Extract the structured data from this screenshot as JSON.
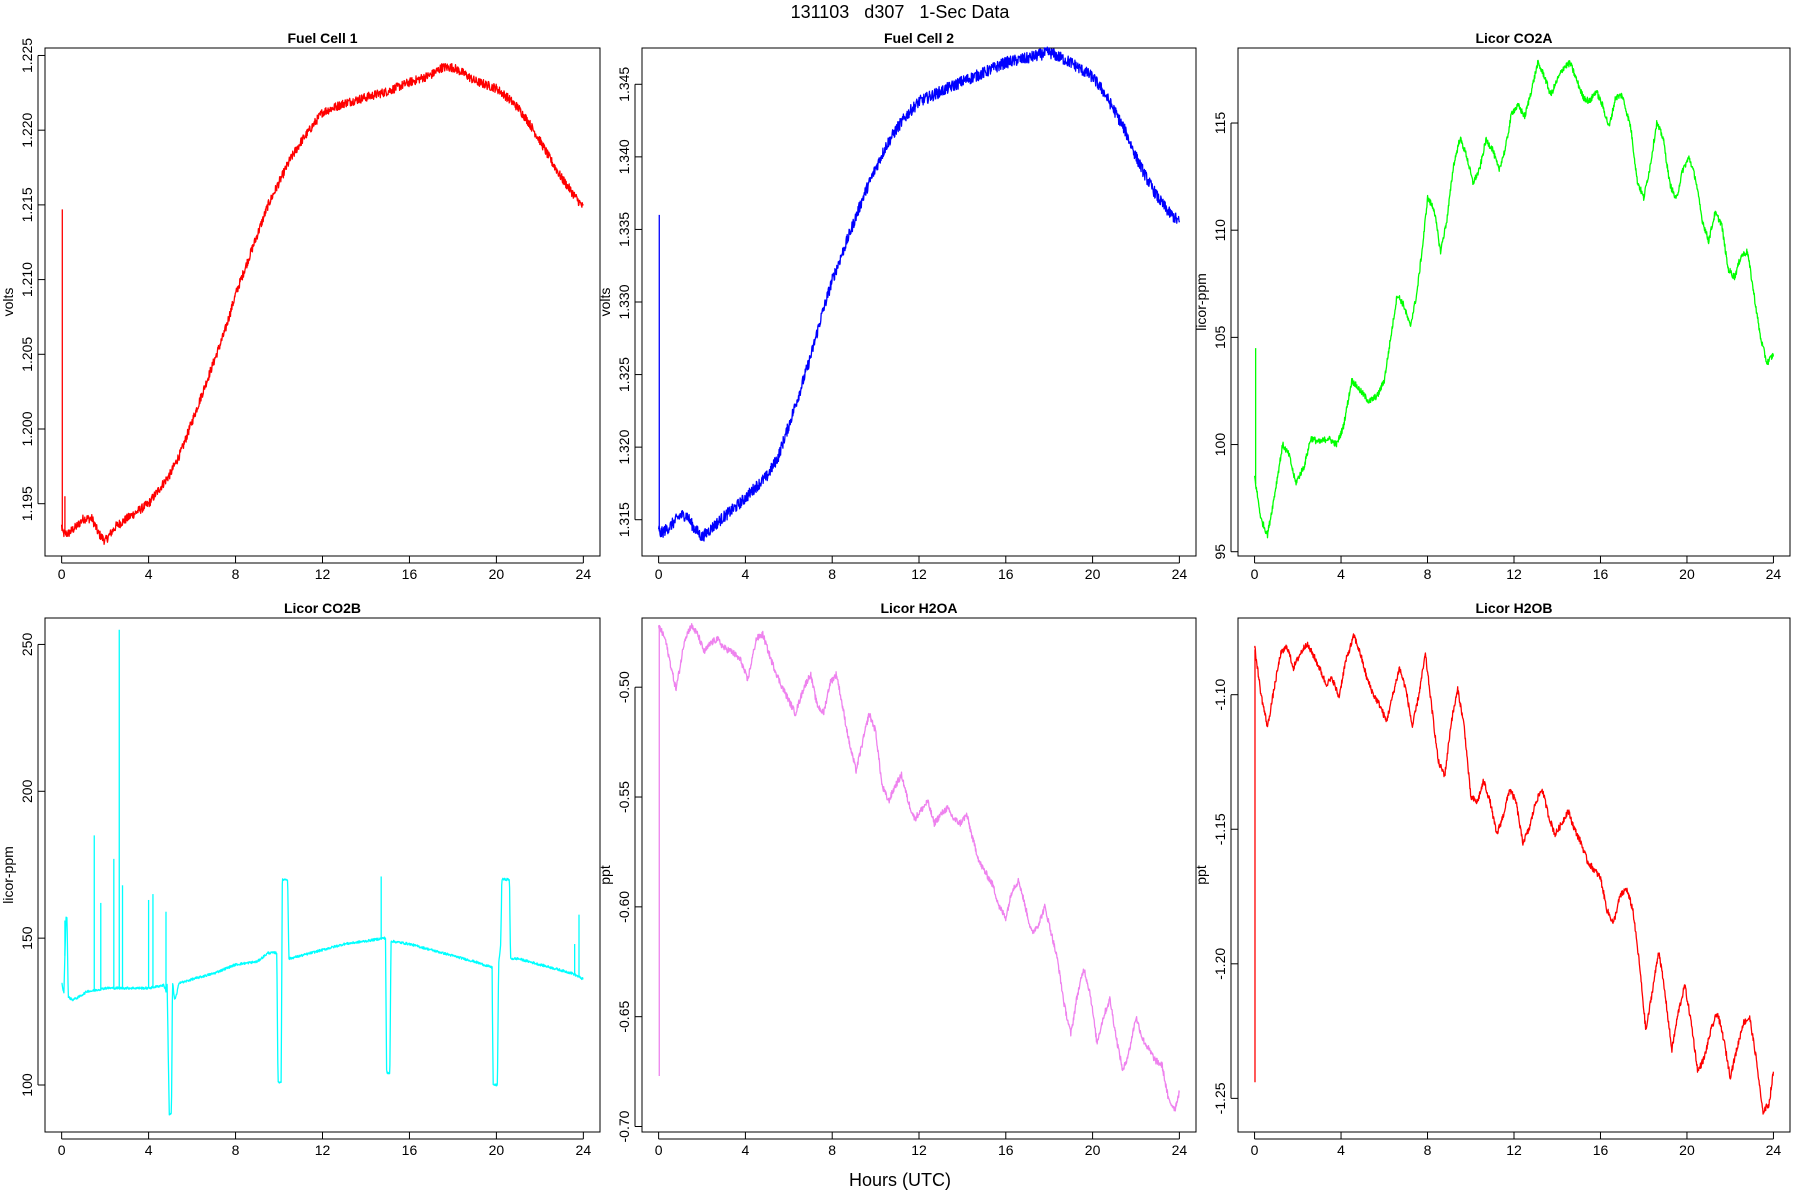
{
  "page": {
    "title": "131103   d307   1-Sec Data",
    "xlabel": "Hours (UTC)"
  },
  "chart_data": [
    {
      "type": "line",
      "title": "Fuel Cell 1",
      "ylabel": "volts",
      "color": "#ff0000",
      "xlim": [
        0,
        24
      ],
      "ylim": [
        1.1915,
        1.2255
      ],
      "x_ticks": [
        0,
        4,
        8,
        12,
        16,
        20,
        24
      ],
      "y_ticks": [
        1.195,
        1.2,
        1.205,
        1.21,
        1.215,
        1.22,
        1.225
      ],
      "y_tick_labels": [
        "1.195",
        "1.200",
        "1.205",
        "1.210",
        "1.215",
        "1.220",
        "1.225"
      ],
      "noise": 0.0003,
      "spikes": [
        [
          0.03,
          1.2147
        ],
        [
          0.15,
          1.1955
        ]
      ],
      "series": [
        {
          "x": [
            0,
            0.05,
            0.3,
            0.7,
            1.0,
            1.4,
            1.7,
            2.0,
            2.5,
            3.0,
            3.5,
            4.0,
            4.5,
            5.0,
            5.5,
            6.0,
            6.5,
            7.0,
            7.5,
            8.0,
            8.5,
            9.0,
            9.5,
            10.0,
            10.5,
            11.0,
            11.5,
            12.0,
            13.0,
            14.0,
            15.0,
            16.0,
            17.0,
            17.5,
            18.0,
            18.5,
            19.0,
            20.0,
            20.5,
            21.0,
            21.5,
            22.0,
            22.5,
            23.0,
            23.5,
            24.0
          ],
          "y": [
            1.1935,
            1.193,
            1.193,
            1.1935,
            1.194,
            1.194,
            1.193,
            1.1925,
            1.1935,
            1.194,
            1.1945,
            1.195,
            1.196,
            1.197,
            1.1985,
            1.2005,
            1.2025,
            1.2045,
            1.2065,
            1.209,
            1.211,
            1.213,
            1.215,
            1.2165,
            1.218,
            1.2192,
            1.2202,
            1.2212,
            1.2218,
            1.2222,
            1.2226,
            1.2232,
            1.2237,
            1.2242,
            1.2242,
            1.2238,
            1.2233,
            1.2228,
            1.2222,
            1.2215,
            1.2205,
            1.2193,
            1.218,
            1.2168,
            1.2158,
            1.2148
          ]
        }
      ]
    },
    {
      "type": "line",
      "title": "Fuel Cell 2",
      "ylabel": "volts",
      "color": "#0000ff",
      "xlim": [
        0,
        24
      ],
      "ylim": [
        1.3125,
        1.3475
      ],
      "x_ticks": [
        0,
        4,
        8,
        12,
        16,
        20,
        24
      ],
      "y_ticks": [
        1.315,
        1.32,
        1.325,
        1.33,
        1.335,
        1.34,
        1.345
      ],
      "y_tick_labels": [
        "1.315",
        "1.320",
        "1.325",
        "1.330",
        "1.335",
        "1.340",
        "1.345"
      ],
      "noise": 0.0004,
      "spikes": [
        [
          0.03,
          1.336
        ]
      ],
      "series": [
        {
          "x": [
            0,
            0.05,
            0.5,
            1.0,
            1.3,
            1.6,
            2.0,
            2.5,
            3.0,
            3.5,
            4.0,
            4.5,
            5.0,
            5.5,
            6.0,
            6.5,
            7.0,
            7.5,
            8.0,
            8.5,
            9.0,
            9.5,
            10.0,
            10.5,
            11.0,
            11.5,
            12.0,
            13.0,
            14.0,
            15.0,
            16.0,
            17.0,
            18.0,
            19.0,
            20.0,
            20.5,
            21.0,
            21.5,
            22.0,
            22.5,
            23.0,
            23.5,
            24.0
          ],
          "y": [
            1.3145,
            1.314,
            1.3145,
            1.3153,
            1.3153,
            1.3145,
            1.3138,
            1.3145,
            1.3152,
            1.3158,
            1.3165,
            1.3173,
            1.318,
            1.3193,
            1.3215,
            1.3238,
            1.3262,
            1.329,
            1.3315,
            1.3335,
            1.3355,
            1.3375,
            1.3392,
            1.3408,
            1.342,
            1.343,
            1.3438,
            1.3445,
            1.3452,
            1.3458,
            1.3465,
            1.3468,
            1.3472,
            1.3465,
            1.3455,
            1.3445,
            1.3432,
            1.3418,
            1.34,
            1.3385,
            1.3372,
            1.3362,
            1.3355
          ]
        }
      ]
    },
    {
      "type": "line",
      "title": "Licor CO2A",
      "ylabel": "licor-ppm",
      "color": "#00ff00",
      "xlim": [
        0,
        24
      ],
      "ylim": [
        94.8,
        118.5
      ],
      "x_ticks": [
        0,
        4,
        8,
        12,
        16,
        20,
        24
      ],
      "y_ticks": [
        95,
        100,
        105,
        110,
        115
      ],
      "y_tick_labels": [
        "95",
        "100",
        "105",
        "110",
        "115"
      ],
      "noise": 0.15,
      "spikes": [
        [
          0.05,
          104.5
        ]
      ],
      "series": [
        {
          "x": [
            0,
            0.3,
            0.6,
            0.9,
            1.3,
            1.6,
            1.9,
            2.3,
            2.6,
            3.0,
            3.4,
            3.8,
            4.1,
            4.5,
            4.9,
            5.3,
            5.7,
            6.0,
            6.3,
            6.6,
            6.9,
            7.2,
            7.5,
            7.8,
            8.0,
            8.3,
            8.6,
            8.9,
            9.2,
            9.5,
            9.8,
            10.1,
            10.4,
            10.7,
            11.0,
            11.3,
            11.6,
            11.9,
            12.2,
            12.5,
            12.8,
            13.1,
            13.4,
            13.7,
            14.0,
            14.3,
            14.6,
            14.9,
            15.2,
            15.5,
            15.8,
            16.1,
            16.4,
            16.7,
            17.0,
            17.4,
            17.7,
            18.0,
            18.3,
            18.6,
            18.9,
            19.2,
            19.5,
            19.8,
            20.1,
            20.4,
            20.7,
            21.0,
            21.3,
            21.6,
            21.9,
            22.2,
            22.5,
            22.8,
            23.1,
            23.4,
            23.7,
            24.0
          ],
          "y": [
            98.5,
            96.5,
            95.8,
            97.5,
            100.0,
            99.5,
            98.2,
            99.0,
            100.3,
            100.1,
            100.3,
            100.0,
            100.8,
            103.0,
            102.5,
            102.0,
            102.3,
            103.0,
            105.0,
            107.0,
            106.5,
            105.5,
            107.0,
            109.5,
            111.5,
            111.0,
            109.0,
            110.5,
            113.0,
            114.3,
            113.5,
            112.2,
            112.8,
            114.2,
            113.8,
            112.8,
            113.8,
            115.5,
            115.8,
            115.3,
            116.5,
            117.8,
            117.2,
            116.3,
            117.0,
            117.6,
            117.8,
            117.0,
            116.2,
            116.0,
            116.5,
            115.8,
            114.8,
            116.2,
            116.3,
            114.8,
            112.3,
            111.5,
            113.0,
            115.0,
            114.3,
            112.2,
            111.4,
            112.8,
            113.4,
            112.4,
            110.5,
            109.5,
            110.8,
            110.3,
            108.2,
            107.8,
            108.8,
            109.0,
            107.0,
            105.0,
            103.8,
            104.2
          ]
        }
      ]
    },
    {
      "type": "line",
      "title": "Licor CO2B",
      "ylabel": "licor-ppm",
      "color": "#00ffff",
      "xlim": [
        0,
        24
      ],
      "ylim": [
        84,
        259
      ],
      "x_ticks": [
        0,
        4,
        8,
        12,
        16,
        20,
        24
      ],
      "y_ticks": [
        100,
        150,
        200,
        250
      ],
      "y_tick_labels": [
        "100",
        "150",
        "200",
        "250"
      ],
      "noise": 0.4,
      "spikes": [
        [
          0.15,
          156
        ],
        [
          1.5,
          185
        ],
        [
          1.8,
          162
        ],
        [
          2.4,
          177
        ],
        [
          2.65,
          255
        ],
        [
          2.8,
          168
        ],
        [
          4.0,
          163
        ],
        [
          4.2,
          165
        ],
        [
          4.8,
          159
        ],
        [
          14.7,
          171
        ],
        [
          23.6,
          148
        ],
        [
          23.8,
          158
        ]
      ],
      "series": [
        {
          "x": [
            0,
            0.05,
            0.1,
            0.2,
            0.25,
            0.3,
            0.5,
            0.8,
            1.0,
            1.2,
            1.4,
            2.0,
            3.0,
            4.0,
            4.7,
            4.8,
            4.85,
            4.95,
            5.05,
            5.1,
            5.2,
            5.3,
            5.4,
            5.6,
            6.0,
            7.0,
            8.0,
            9.0,
            9.5,
            9.9,
            9.95,
            10.1,
            10.15,
            10.4,
            10.45,
            11.0,
            12.0,
            13.0,
            14.0,
            14.8,
            14.9,
            14.95,
            15.1,
            15.15,
            16.0,
            17.0,
            18.0,
            19.0,
            19.8,
            19.85,
            20.05,
            20.1,
            20.2,
            20.25,
            20.3,
            20.35,
            20.6,
            20.65,
            21.0,
            21.5,
            22.0,
            22.5,
            23.0,
            23.5,
            24.0
          ],
          "y": [
            135,
            133,
            131,
            157,
            157,
            130,
            129,
            130,
            131,
            132,
            132,
            133,
            133,
            133,
            134,
            132,
            135,
            90,
            90,
            135,
            129,
            131,
            135,
            135,
            136,
            138,
            141,
            142,
            145,
            145,
            101,
            101,
            170,
            170,
            143,
            144,
            146,
            148,
            149,
            150,
            150,
            104,
            104,
            149,
            148,
            146,
            144,
            142,
            140,
            100,
            100,
            141,
            148,
            170,
            170,
            170,
            170,
            143,
            143,
            142,
            141,
            140,
            139,
            138,
            136
          ]
        }
      ]
    },
    {
      "type": "line",
      "title": "Licor H2OA",
      "ylabel": "ppt",
      "color": "#ee82ee",
      "xlim": [
        0,
        24
      ],
      "ylim": [
        -0.7025,
        -0.4685
      ],
      "x_ticks": [
        0,
        4,
        8,
        12,
        16,
        20,
        24
      ],
      "y_ticks": [
        -0.7,
        -0.65,
        -0.6,
        -0.55,
        -0.5
      ],
      "y_tick_labels": [
        "-0.70",
        "-0.65",
        "-0.60",
        "-0.55",
        "-0.50"
      ],
      "noise": 0.0015,
      "spikes": [
        [
          0.03,
          -0.677
        ]
      ],
      "series": [
        {
          "x": [
            0,
            0.3,
            0.6,
            0.8,
            1.0,
            1.2,
            1.5,
            1.8,
            2.1,
            2.4,
            2.7,
            3.0,
            3.4,
            3.8,
            4.1,
            4.5,
            4.8,
            5.2,
            5.6,
            6.0,
            6.3,
            6.7,
            7.0,
            7.3,
            7.6,
            7.9,
            8.2,
            8.5,
            8.8,
            9.1,
            9.4,
            9.7,
            10.0,
            10.3,
            10.6,
            10.9,
            11.2,
            11.5,
            11.8,
            12.1,
            12.4,
            12.7,
            13.0,
            13.3,
            13.6,
            13.9,
            14.2,
            14.5,
            14.8,
            15.1,
            15.4,
            15.7,
            16.0,
            16.3,
            16.6,
            16.9,
            17.2,
            17.5,
            17.8,
            18.1,
            18.4,
            18.7,
            19.0,
            19.3,
            19.6,
            19.9,
            20.2,
            20.5,
            20.8,
            21.1,
            21.4,
            21.7,
            22.0,
            22.3,
            22.6,
            22.9,
            23.2,
            23.5,
            23.8,
            24.0
          ],
          "y": [
            -0.472,
            -0.478,
            -0.492,
            -0.501,
            -0.49,
            -0.478,
            -0.472,
            -0.476,
            -0.484,
            -0.48,
            -0.478,
            -0.482,
            -0.484,
            -0.488,
            -0.497,
            -0.478,
            -0.476,
            -0.488,
            -0.498,
            -0.506,
            -0.512,
            -0.5,
            -0.494,
            -0.508,
            -0.512,
            -0.498,
            -0.494,
            -0.51,
            -0.526,
            -0.538,
            -0.525,
            -0.512,
            -0.52,
            -0.545,
            -0.552,
            -0.545,
            -0.54,
            -0.552,
            -0.56,
            -0.556,
            -0.552,
            -0.562,
            -0.558,
            -0.555,
            -0.56,
            -0.562,
            -0.558,
            -0.57,
            -0.58,
            -0.585,
            -0.59,
            -0.6,
            -0.605,
            -0.592,
            -0.588,
            -0.6,
            -0.612,
            -0.608,
            -0.6,
            -0.612,
            -0.625,
            -0.645,
            -0.658,
            -0.64,
            -0.628,
            -0.64,
            -0.662,
            -0.65,
            -0.642,
            -0.66,
            -0.675,
            -0.665,
            -0.65,
            -0.66,
            -0.665,
            -0.67,
            -0.672,
            -0.688,
            -0.692,
            -0.684
          ]
        }
      ]
    },
    {
      "type": "line",
      "title": "Licor H2OB",
      "ylabel": "ppt",
      "color": "#ff0000",
      "xlim": [
        0,
        24
      ],
      "ylim": [
        -1.2625,
        -1.0715
      ],
      "x_ticks": [
        0,
        4,
        8,
        12,
        16,
        20,
        24
      ],
      "y_ticks": [
        -1.25,
        -1.2,
        -1.15,
        -1.1
      ],
      "y_tick_labels": [
        "-1.25",
        "-1.20",
        "-1.15",
        "-1.10"
      ],
      "noise": 0.0012,
      "spikes": [
        [
          0.02,
          -1.244
        ]
      ],
      "series": [
        {
          "x": [
            0,
            0.3,
            0.6,
            0.9,
            1.2,
            1.5,
            1.8,
            2.1,
            2.4,
            2.7,
            3.0,
            3.3,
            3.6,
            3.9,
            4.2,
            4.6,
            4.9,
            5.2,
            5.5,
            5.8,
            6.1,
            6.4,
            6.7,
            7.0,
            7.3,
            7.6,
            7.9,
            8.2,
            8.5,
            8.8,
            9.1,
            9.4,
            9.7,
            10.0,
            10.3,
            10.6,
            10.9,
            11.2,
            11.5,
            11.8,
            12.1,
            12.4,
            12.7,
            13.0,
            13.3,
            13.6,
            13.9,
            14.2,
            14.5,
            14.8,
            15.1,
            15.4,
            15.7,
            16.0,
            16.3,
            16.6,
            16.9,
            17.2,
            17.5,
            17.8,
            18.1,
            18.4,
            18.7,
            19.0,
            19.3,
            19.6,
            19.9,
            20.2,
            20.5,
            20.8,
            21.1,
            21.4,
            21.7,
            22.0,
            22.3,
            22.6,
            22.9,
            23.2,
            23.5,
            23.8,
            24.0
          ],
          "y": [
            -1.082,
            -1.1,
            -1.112,
            -1.098,
            -1.085,
            -1.082,
            -1.09,
            -1.085,
            -1.081,
            -1.085,
            -1.09,
            -1.096,
            -1.094,
            -1.101,
            -1.088,
            -1.078,
            -1.085,
            -1.094,
            -1.1,
            -1.104,
            -1.11,
            -1.1,
            -1.09,
            -1.098,
            -1.112,
            -1.1,
            -1.085,
            -1.105,
            -1.125,
            -1.13,
            -1.11,
            -1.098,
            -1.112,
            -1.138,
            -1.14,
            -1.132,
            -1.14,
            -1.152,
            -1.145,
            -1.135,
            -1.14,
            -1.155,
            -1.15,
            -1.14,
            -1.135,
            -1.145,
            -1.152,
            -1.148,
            -1.143,
            -1.15,
            -1.155,
            -1.162,
            -1.165,
            -1.168,
            -1.18,
            -1.185,
            -1.175,
            -1.172,
            -1.18,
            -1.2,
            -1.225,
            -1.21,
            -1.195,
            -1.212,
            -1.232,
            -1.218,
            -1.208,
            -1.222,
            -1.24,
            -1.235,
            -1.225,
            -1.218,
            -1.228,
            -1.242,
            -1.232,
            -1.222,
            -1.22,
            -1.235,
            -1.255,
            -1.252,
            -1.24
          ]
        }
      ]
    }
  ]
}
